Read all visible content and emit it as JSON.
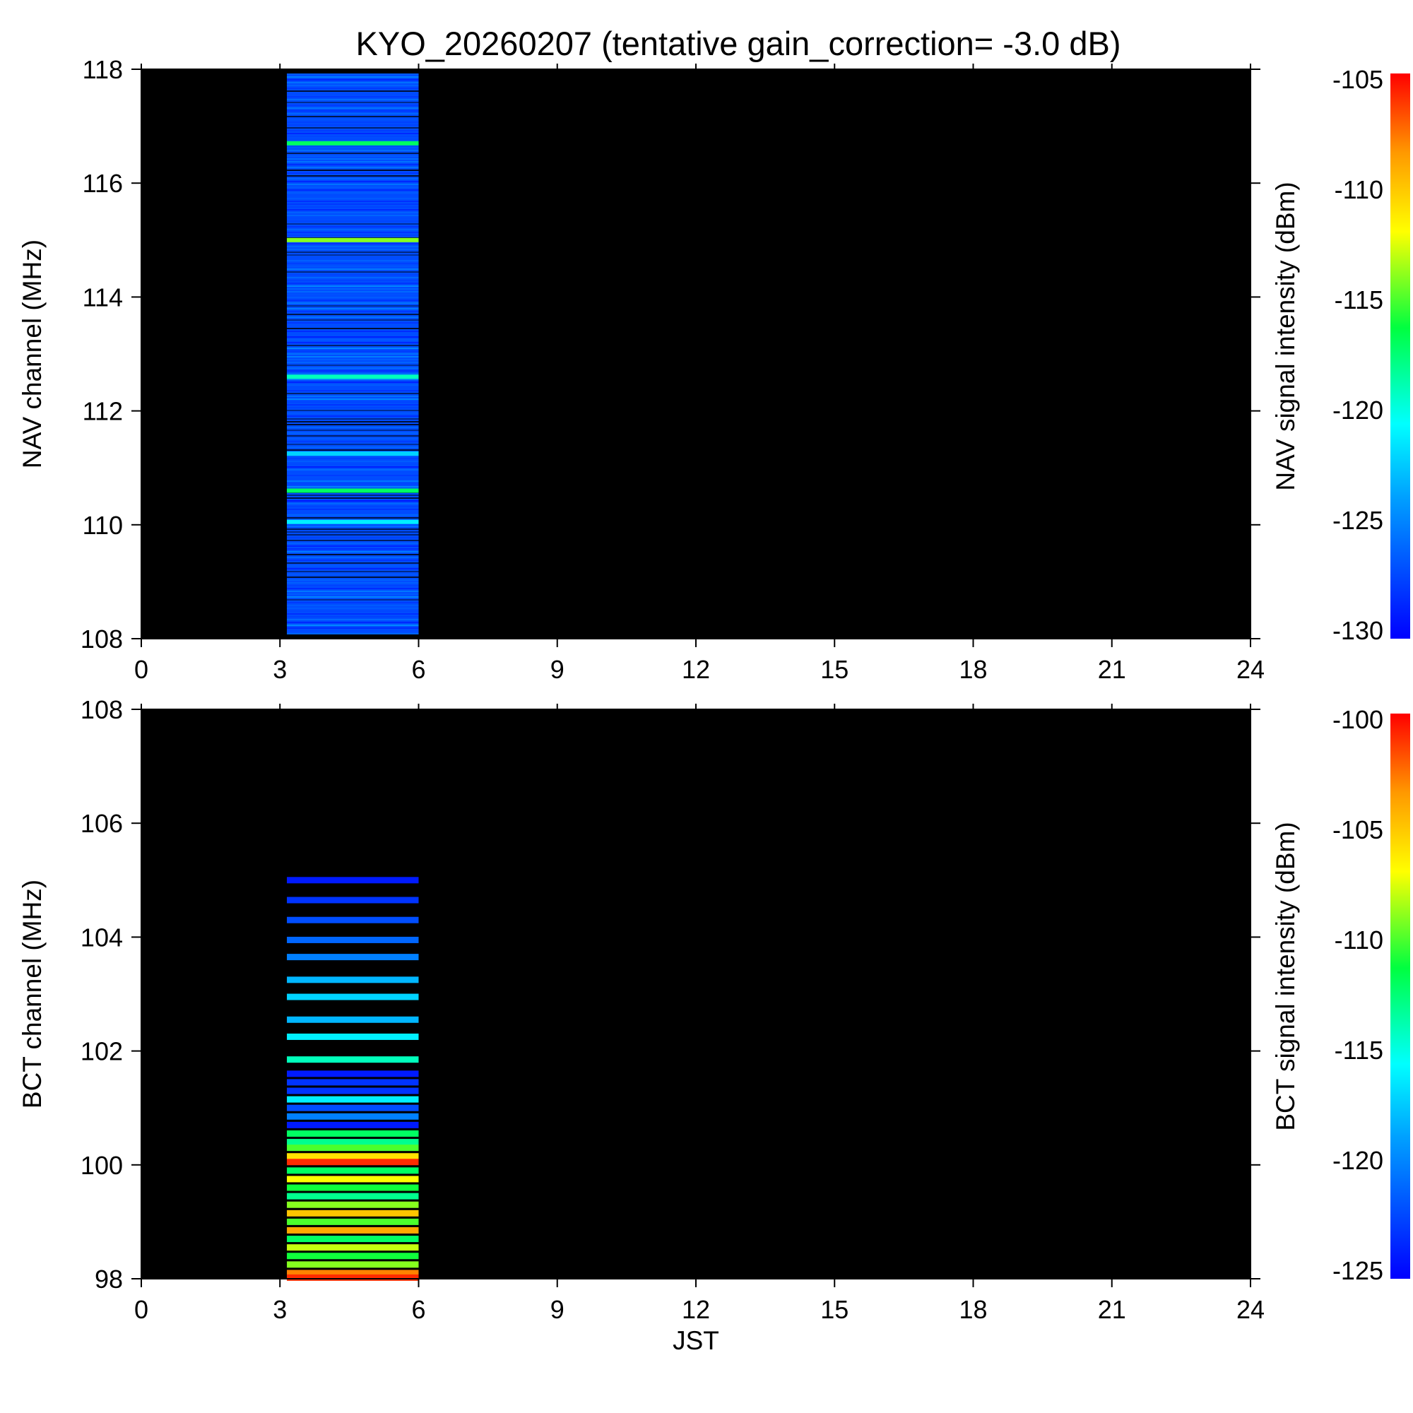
{
  "title": "KYO_20260207 (tentative gain_correction= -3.0 dB)",
  "chart_data": [
    {
      "type": "heatmap",
      "name": "nav-panel",
      "xlabel": "",
      "ylabel": "NAV channel (MHz)",
      "xlim": [
        0,
        24
      ],
      "ylim": [
        108,
        118
      ],
      "xticks": [
        "0",
        "3",
        "6",
        "9",
        "12",
        "15",
        "18",
        "21",
        "24"
      ],
      "yticks": [
        "108",
        "110",
        "112",
        "114",
        "116",
        "118"
      ],
      "data_time_range": [
        3.15,
        6.0
      ],
      "background_noise_dbm": -127,
      "bands": [
        {
          "freq": 116.7,
          "dbm": -117
        },
        {
          "freq": 115.0,
          "dbm": -114
        },
        {
          "freq": 112.6,
          "dbm": -119
        },
        {
          "freq": 111.25,
          "dbm": -122
        },
        {
          "freq": 110.6,
          "dbm": -117
        },
        {
          "freq": 110.05,
          "dbm": -121
        }
      ],
      "colorbar": {
        "label": "NAV signal intensity (dBm)",
        "min": -130,
        "max": -105,
        "ticks": [
          "-105",
          "-110",
          "-115",
          "-120",
          "-125",
          "-130"
        ]
      }
    },
    {
      "type": "heatmap",
      "name": "bct-panel",
      "xlabel": "JST",
      "ylabel": "BCT channel (MHz)",
      "xlim": [
        0,
        24
      ],
      "ylim": [
        98,
        108
      ],
      "xticks": [
        "0",
        "3",
        "6",
        "9",
        "12",
        "15",
        "18",
        "21",
        "24"
      ],
      "yticks": [
        "98",
        "100",
        "102",
        "104",
        "106",
        "108"
      ],
      "data_time_range": [
        3.15,
        6.0
      ],
      "bands": [
        {
          "freq": 105.0,
          "dbm": -124
        },
        {
          "freq": 104.65,
          "dbm": -123
        },
        {
          "freq": 104.3,
          "dbm": -122
        },
        {
          "freq": 103.95,
          "dbm": -121
        },
        {
          "freq": 103.65,
          "dbm": -120
        },
        {
          "freq": 103.25,
          "dbm": -118
        },
        {
          "freq": 102.95,
          "dbm": -117
        },
        {
          "freq": 102.55,
          "dbm": -118
        },
        {
          "freq": 102.25,
          "dbm": -116
        },
        {
          "freq": 101.85,
          "dbm": -114
        },
        {
          "freq": 101.6,
          "dbm": -124
        },
        {
          "freq": 101.45,
          "dbm": -123
        },
        {
          "freq": 101.3,
          "dbm": -123
        },
        {
          "freq": 101.15,
          "dbm": -116
        },
        {
          "freq": 101.0,
          "dbm": -122
        },
        {
          "freq": 100.85,
          "dbm": -120
        },
        {
          "freq": 100.7,
          "dbm": -124
        },
        {
          "freq": 100.55,
          "dbm": -112
        },
        {
          "freq": 100.4,
          "dbm": -113
        },
        {
          "freq": 100.3,
          "dbm": -110
        },
        {
          "freq": 100.15,
          "dbm": -106
        },
        {
          "freq": 100.05,
          "dbm": -101
        },
        {
          "freq": 99.9,
          "dbm": -112
        },
        {
          "freq": 99.75,
          "dbm": -107
        },
        {
          "freq": 99.6,
          "dbm": -111
        },
        {
          "freq": 99.45,
          "dbm": -113
        },
        {
          "freq": 99.3,
          "dbm": -109
        },
        {
          "freq": 99.15,
          "dbm": -105
        },
        {
          "freq": 99.0,
          "dbm": -110
        },
        {
          "freq": 98.85,
          "dbm": -104
        },
        {
          "freq": 98.7,
          "dbm": -112
        },
        {
          "freq": 98.55,
          "dbm": -108
        },
        {
          "freq": 98.4,
          "dbm": -111
        },
        {
          "freq": 98.25,
          "dbm": -109
        },
        {
          "freq": 98.1,
          "dbm": -103
        },
        {
          "freq": 98.02,
          "dbm": -101
        }
      ],
      "colorbar": {
        "label": "BCT signal intensity (dBm)",
        "min": -125,
        "max": -100,
        "ticks": [
          "-100",
          "-105",
          "-110",
          "-115",
          "-120",
          "-125"
        ]
      }
    }
  ]
}
